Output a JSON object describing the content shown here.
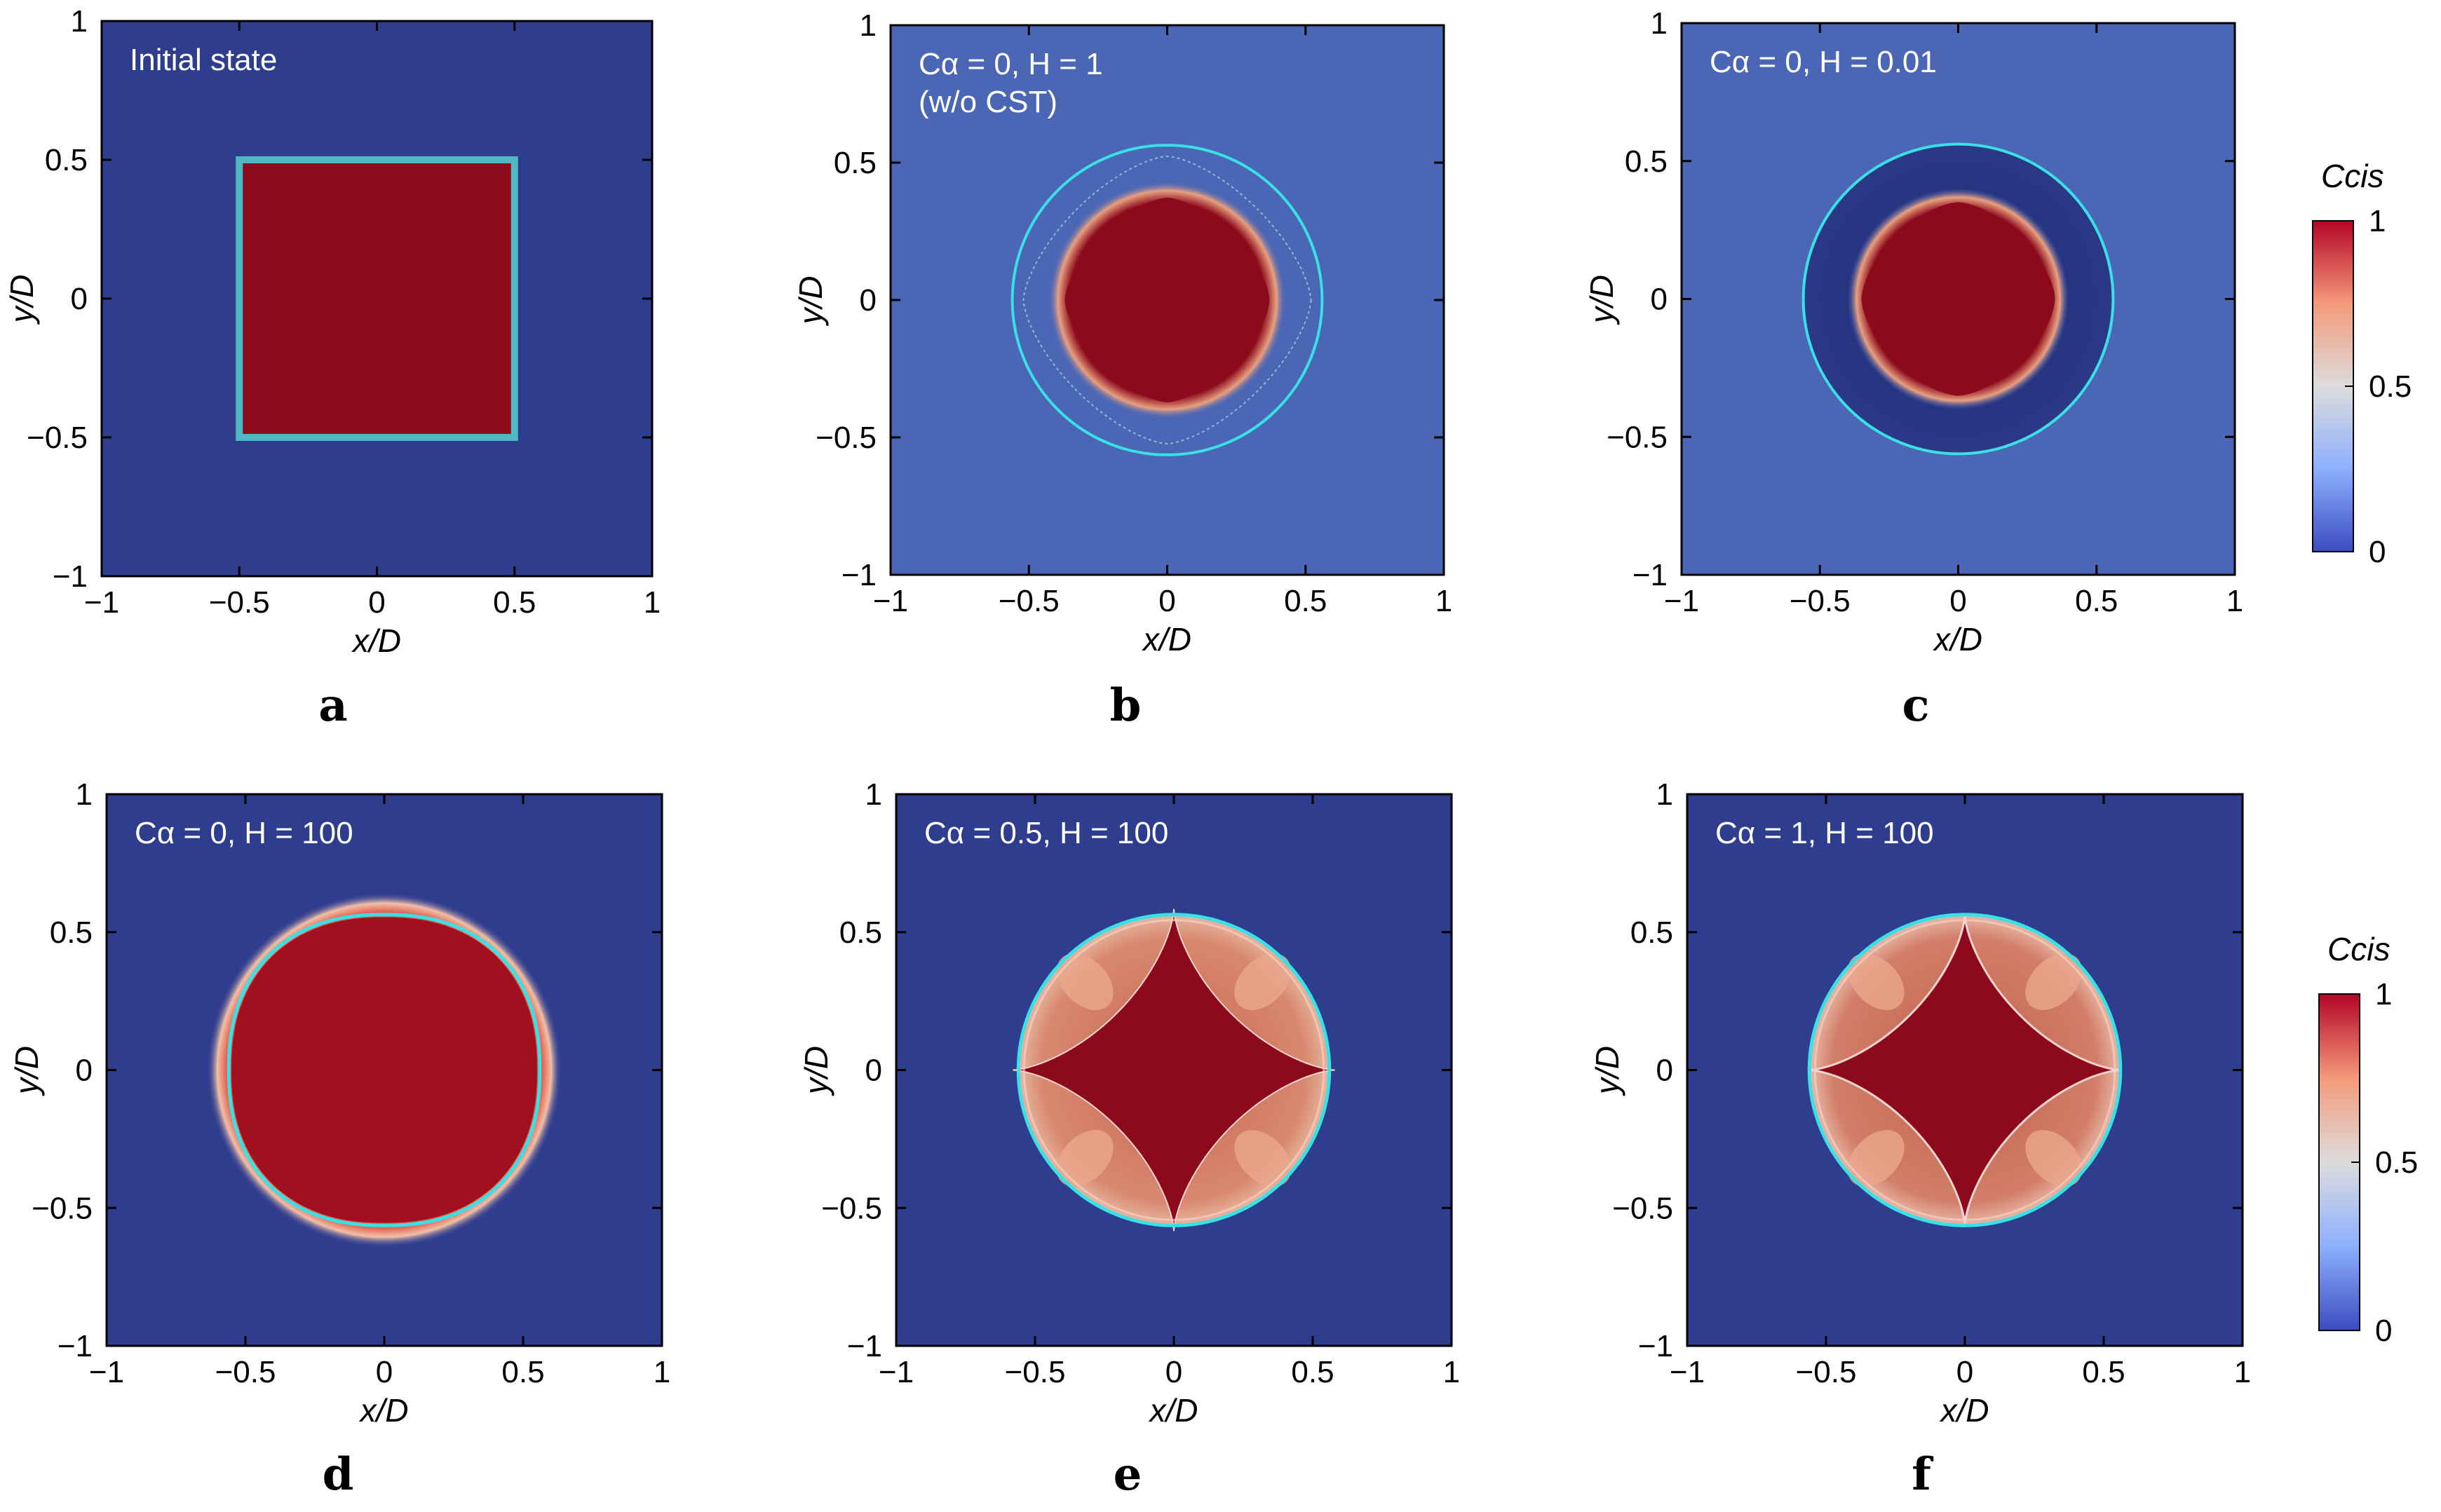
{
  "colors": {
    "background_blue": "#2f3d8f",
    "background_pale_blue": "#4a66b4",
    "core_red": "#8c0a1c",
    "contour_cyan": "#39e0e6",
    "colormap": [
      "#3b4cc0",
      "#8db0fe",
      "#dddcdc",
      "#f49a7b",
      "#b40426"
    ]
  },
  "chart_data": [
    {
      "panel": "a",
      "type": "heatmap",
      "annotation_lines": [
        "Initial state"
      ],
      "xlabel": "x/D",
      "ylabel": "y/D",
      "xlim": [
        -1,
        1
      ],
      "ylim": [
        -1,
        1
      ],
      "xticks": [
        "−1",
        "−0.5",
        "0",
        "0.5",
        "1"
      ],
      "yticks": [
        "1",
        "0.5",
        "0",
        "−0.5",
        "−1"
      ],
      "field": {
        "shape": "square",
        "half_width": 0.5,
        "inside_value": 1,
        "outside_value": 0.05
      },
      "colorbar": false
    },
    {
      "panel": "b",
      "type": "heatmap",
      "annotation_lines": [
        "Cα = 0, H = 1",
        "(w/o CST)"
      ],
      "xlabel": "x/D",
      "ylabel": "y/D",
      "xlim": [
        -1,
        1
      ],
      "ylim": [
        -1,
        1
      ],
      "xticks": [
        "−1",
        "−0.5",
        "0",
        "0.5",
        "1"
      ],
      "yticks": [
        "1",
        "0.5",
        "0",
        "−0.5",
        "−1"
      ],
      "field": {
        "shape": "rounded-diamond",
        "core_radius": 0.38,
        "outside_value": 0.2,
        "contour_radius": 0.56
      },
      "colorbar": false
    },
    {
      "panel": "c",
      "type": "heatmap",
      "annotation_lines": [
        "Cα = 0, H = 0.01"
      ],
      "xlabel": "x/D",
      "ylabel": "y/D",
      "xlim": [
        -1,
        1
      ],
      "ylim": [
        -1,
        1
      ],
      "xticks": [
        "−1",
        "−0.5",
        "0",
        "0.5",
        "1"
      ],
      "yticks": [
        "1",
        "0.5",
        "0",
        "−0.5",
        "−1"
      ],
      "field": {
        "shape": "rounded-diamond",
        "core_radius": 0.36,
        "outside_value": 0.22,
        "contour_radius": 0.56
      },
      "colorbar": {
        "label": "Ccis",
        "ticks": [
          "1",
          "0.5",
          "0"
        ]
      }
    },
    {
      "panel": "d",
      "type": "heatmap",
      "annotation_lines": [
        "Cα = 0, H = 100"
      ],
      "xlabel": "x/D",
      "ylabel": "y/D",
      "xlim": [
        -1,
        1
      ],
      "ylim": [
        -1,
        1
      ],
      "xticks": [
        "−1",
        "−0.5",
        "0",
        "0.5",
        "1"
      ],
      "yticks": [
        "1",
        "0.5",
        "0",
        "−0.5",
        "−1"
      ],
      "field": {
        "shape": "rounded-square",
        "core_radius": 0.55,
        "outside_value": 0.05,
        "contour_radius": 0.56
      },
      "colorbar": false
    },
    {
      "panel": "e",
      "type": "heatmap",
      "annotation_lines": [
        "Cα = 0.5, H = 100"
      ],
      "xlabel": "x/D",
      "ylabel": "y/D",
      "xlim": [
        -1,
        1
      ],
      "ylim": [
        -1,
        1
      ],
      "xticks": [
        "−1",
        "−0.5",
        "0",
        "0.5",
        "1"
      ],
      "yticks": [
        "1",
        "0.5",
        "0",
        "−0.5",
        "−1"
      ],
      "field": {
        "shape": "circle-with-star-core",
        "core_radius": 0.55,
        "outside_value": 0.05,
        "contour_radius": 0.56
      },
      "colorbar": false
    },
    {
      "panel": "f",
      "type": "heatmap",
      "annotation_lines": [
        "Cα = 1, H = 100"
      ],
      "xlabel": "x/D",
      "ylabel": "y/D",
      "xlim": [
        -1,
        1
      ],
      "ylim": [
        -1,
        1
      ],
      "xticks": [
        "−1",
        "−0.5",
        "0",
        "0.5",
        "1"
      ],
      "yticks": [
        "1",
        "0.5",
        "0",
        "−0.5",
        "−1"
      ],
      "field": {
        "shape": "circle-with-star-core",
        "core_radius": 0.55,
        "outside_value": 0.05,
        "contour_radius": 0.56
      },
      "colorbar": {
        "label": "Ccis",
        "ticks": [
          "1",
          "0.5",
          "0"
        ]
      }
    }
  ]
}
